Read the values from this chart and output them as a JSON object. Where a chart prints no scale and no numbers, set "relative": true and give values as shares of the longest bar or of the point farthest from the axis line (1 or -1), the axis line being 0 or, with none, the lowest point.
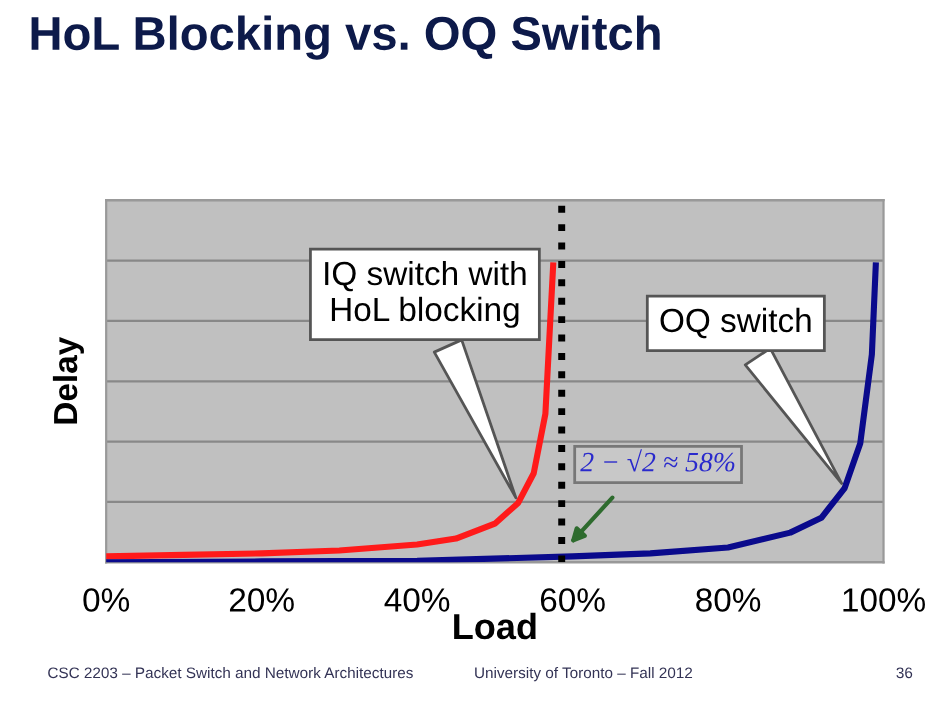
{
  "chart_data": {
    "type": "line",
    "title": "HoL Blocking vs. OQ Switch",
    "xlabel": "Load",
    "ylabel": "Delay",
    "relative": true,
    "grid": "y",
    "legend": false,
    "marker": "none",
    "line_style": "solid",
    "xlim": [
      0,
      100
    ],
    "xticks": [
      {
        "value": 0,
        "label": "0%"
      },
      {
        "value": 20,
        "label": "20%"
      },
      {
        "value": 40,
        "label": "40%"
      },
      {
        "value": 60,
        "label": "60%"
      },
      {
        "value": 80,
        "label": "80%"
      },
      {
        "value": 100,
        "label": "100%"
      }
    ],
    "series": [
      {
        "color": "#ff1a1a",
        "x": [
          0,
          10,
          20,
          30,
          40,
          45,
          50,
          53,
          55,
          56.5,
          57.5
        ],
        "values": [
          0.02,
          0.025,
          0.03,
          0.04,
          0.06,
          0.08,
          0.13,
          0.2,
          0.3,
          0.5,
          1
        ]
      },
      {
        "color": "#0a0a8c",
        "x": [
          0,
          20,
          40,
          60,
          70,
          80,
          88,
          92,
          95,
          97,
          98.5,
          99
        ],
        "values": [
          0,
          0.003,
          0.005,
          0.02,
          0.03,
          0.05,
          0.1,
          0.15,
          0.25,
          0.4,
          0.7,
          1
        ]
      }
    ],
    "ref_lines": [
      {
        "axis": "x",
        "value": 58.6,
        "label": null,
        "color": "#000000",
        "line_style": "dotted"
      }
    ],
    "annotations": [
      "IQ switch with\nHoL blocking",
      "OQ switch",
      "2 − √2 ≈ 58%",
      "CSC 2203 – Packet Switch and Network Architectures",
      "University of Toronto – Fall 2012",
      "36"
    ]
  }
}
